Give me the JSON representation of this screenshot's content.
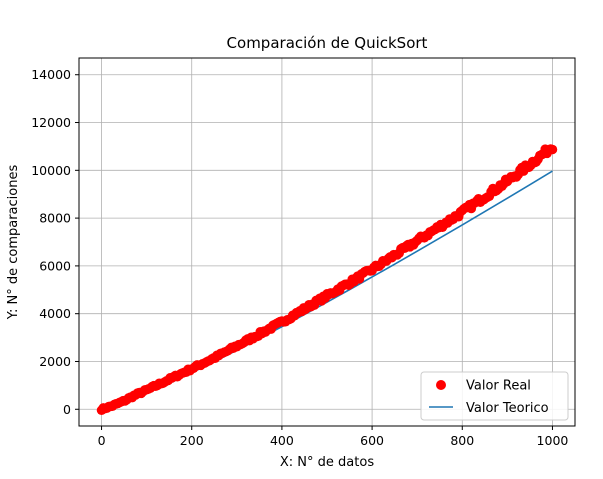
{
  "chart_data": {
    "type": "scatter",
    "title": "Comparación de QuickSort",
    "xlabel": "X: N° de datos",
    "ylabel": "Y: N° de comparaciones",
    "xlim": [
      -50,
      1050
    ],
    "ylim": [
      -700,
      14700
    ],
    "xticks": [
      0,
      200,
      400,
      600,
      800,
      1000
    ],
    "yticks": [
      0,
      2000,
      4000,
      6000,
      8000,
      10000,
      12000,
      14000
    ],
    "xtick_labels": [
      "0",
      "200",
      "400",
      "600",
      "800",
      "1000"
    ],
    "ytick_labels": [
      "0",
      "2000",
      "4000",
      "6000",
      "8000",
      "10000",
      "12000",
      "14000"
    ],
    "grid": true,
    "legend_position": "lower-right",
    "series": [
      {
        "name": "Valor Real",
        "kind": "scatter",
        "color": "#ff0000",
        "x": [
          0,
          25,
          50,
          75,
          100,
          150,
          200,
          250,
          300,
          350,
          400,
          450,
          500,
          550,
          600,
          650,
          700,
          750,
          800,
          850,
          900,
          950,
          1000
        ],
        "y": [
          0,
          150,
          350,
          600,
          800,
          1250,
          1700,
          2150,
          2650,
          3150,
          3650,
          4200,
          4750,
          5300,
          5850,
          6450,
          7050,
          7650,
          8250,
          8900,
          9550,
          10250,
          11000
        ]
      },
      {
        "name": "Valor Teorico",
        "kind": "line",
        "color": "#1f77b4",
        "x": [
          0,
          50,
          100,
          150,
          200,
          250,
          300,
          350,
          400,
          450,
          500,
          550,
          600,
          650,
          700,
          750,
          800,
          850,
          900,
          950,
          1000
        ],
        "y": [
          0,
          282,
          664,
          1084,
          1529,
          1991,
          2469,
          2958,
          3458,
          3966,
          4483,
          5007,
          5537,
          6073,
          6616,
          7164,
          7715,
          8272,
          8832,
          9398,
          9966
        ]
      }
    ]
  }
}
